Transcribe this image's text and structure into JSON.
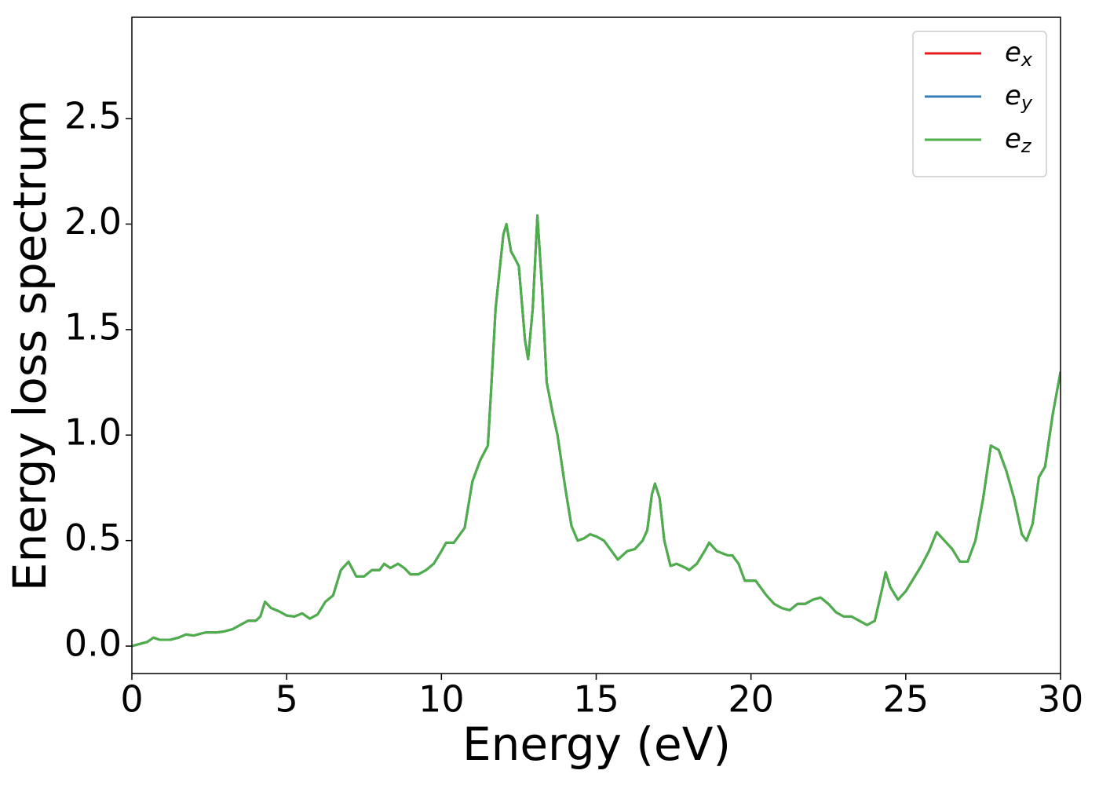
{
  "chart_data": {
    "type": "line",
    "xlabel": "Energy (eV)",
    "ylabel": "Energy loss spectrum",
    "x": [
      0,
      0.25,
      0.5,
      0.7,
      0.9,
      1.25,
      1.5,
      1.75,
      2.0,
      2.25,
      2.4,
      2.75,
      3.0,
      3.25,
      3.5,
      3.75,
      4.0,
      4.15,
      4.3,
      4.5,
      4.75,
      5.0,
      5.25,
      5.5,
      5.75,
      6.0,
      6.25,
      6.5,
      6.75,
      7.0,
      7.25,
      7.5,
      7.75,
      8.0,
      8.15,
      8.35,
      8.6,
      8.8,
      9.0,
      9.25,
      9.5,
      9.75,
      10.0,
      10.15,
      10.4,
      10.75,
      11.0,
      11.25,
      11.5,
      11.6,
      11.75,
      12.0,
      12.1,
      12.25,
      12.4,
      12.5,
      12.7,
      12.8,
      12.95,
      13.1,
      13.25,
      13.4,
      13.6,
      13.75,
      14.0,
      14.2,
      14.4,
      14.6,
      14.8,
      15.0,
      15.25,
      15.5,
      15.7,
      16.0,
      16.25,
      16.5,
      16.65,
      16.8,
      16.9,
      17.05,
      17.2,
      17.4,
      17.6,
      17.9,
      18.0,
      18.25,
      18.5,
      18.65,
      18.9,
      19.25,
      19.4,
      19.6,
      19.8,
      20.0,
      20.15,
      20.5,
      20.75,
      21.0,
      21.25,
      21.5,
      21.75,
      22.0,
      22.25,
      22.5,
      22.75,
      23.0,
      23.25,
      23.5,
      23.75,
      24.0,
      24.25,
      24.35,
      24.5,
      24.75,
      25.0,
      25.25,
      25.5,
      25.75,
      26.0,
      26.25,
      26.5,
      26.75,
      27.0,
      27.25,
      27.5,
      27.75,
      28.0,
      28.25,
      28.5,
      28.75,
      28.9,
      29.1,
      29.3,
      29.5,
      29.75,
      30.0
    ],
    "series": [
      {
        "name": "ex",
        "color": "#e41a1c",
        "values": [
          0,
          0.01,
          0.02,
          0.04,
          0.03,
          0.03,
          0.04,
          0.055,
          0.05,
          0.06,
          0.065,
          0.065,
          0.07,
          0.08,
          0.1,
          0.12,
          0.12,
          0.14,
          0.21,
          0.18,
          0.165,
          0.145,
          0.14,
          0.155,
          0.13,
          0.15,
          0.21,
          0.24,
          0.36,
          0.4,
          0.33,
          0.33,
          0.36,
          0.36,
          0.39,
          0.37,
          0.39,
          0.37,
          0.34,
          0.34,
          0.36,
          0.39,
          0.45,
          0.49,
          0.49,
          0.56,
          0.78,
          0.88,
          0.95,
          1.2,
          1.6,
          1.95,
          2.0,
          1.87,
          1.83,
          1.8,
          1.45,
          1.36,
          1.6,
          2.04,
          1.7,
          1.25,
          1.1,
          1.0,
          0.75,
          0.57,
          0.5,
          0.51,
          0.53,
          0.52,
          0.5,
          0.45,
          0.41,
          0.45,
          0.46,
          0.5,
          0.55,
          0.72,
          0.77,
          0.7,
          0.5,
          0.38,
          0.39,
          0.37,
          0.36,
          0.39,
          0.45,
          0.49,
          0.45,
          0.43,
          0.43,
          0.39,
          0.31,
          0.31,
          0.31,
          0.24,
          0.2,
          0.18,
          0.17,
          0.2,
          0.2,
          0.22,
          0.23,
          0.2,
          0.16,
          0.14,
          0.14,
          0.12,
          0.1,
          0.12,
          0.28,
          0.35,
          0.28,
          0.22,
          0.26,
          0.32,
          0.38,
          0.45,
          0.54,
          0.5,
          0.46,
          0.4,
          0.4,
          0.5,
          0.7,
          0.95,
          0.93,
          0.83,
          0.7,
          0.53,
          0.5,
          0.58,
          0.8,
          0.85,
          1.1,
          1.3
        ]
      },
      {
        "name": "ey",
        "color": "#377eb8",
        "values": [
          0,
          0.01,
          0.02,
          0.04,
          0.03,
          0.03,
          0.04,
          0.055,
          0.05,
          0.06,
          0.065,
          0.065,
          0.07,
          0.08,
          0.1,
          0.12,
          0.12,
          0.14,
          0.21,
          0.18,
          0.165,
          0.145,
          0.14,
          0.155,
          0.13,
          0.15,
          0.21,
          0.24,
          0.36,
          0.4,
          0.33,
          0.33,
          0.36,
          0.36,
          0.39,
          0.37,
          0.39,
          0.37,
          0.34,
          0.34,
          0.36,
          0.39,
          0.45,
          0.49,
          0.49,
          0.56,
          0.78,
          0.88,
          0.95,
          1.2,
          1.6,
          1.95,
          2.0,
          1.87,
          1.83,
          1.8,
          1.45,
          1.36,
          1.6,
          2.04,
          1.7,
          1.25,
          1.1,
          1.0,
          0.75,
          0.57,
          0.5,
          0.51,
          0.53,
          0.52,
          0.5,
          0.45,
          0.41,
          0.45,
          0.46,
          0.5,
          0.55,
          0.72,
          0.77,
          0.7,
          0.5,
          0.38,
          0.39,
          0.37,
          0.36,
          0.39,
          0.45,
          0.49,
          0.45,
          0.43,
          0.43,
          0.39,
          0.31,
          0.31,
          0.31,
          0.24,
          0.2,
          0.18,
          0.17,
          0.2,
          0.2,
          0.22,
          0.23,
          0.2,
          0.16,
          0.14,
          0.14,
          0.12,
          0.1,
          0.12,
          0.28,
          0.35,
          0.28,
          0.22,
          0.26,
          0.32,
          0.38,
          0.45,
          0.54,
          0.5,
          0.46,
          0.4,
          0.4,
          0.5,
          0.7,
          0.95,
          0.93,
          0.83,
          0.7,
          0.53,
          0.5,
          0.58,
          0.8,
          0.85,
          1.1,
          1.3
        ]
      },
      {
        "name": "ez",
        "color": "#4daf4a",
        "values": [
          0,
          0.01,
          0.02,
          0.04,
          0.03,
          0.03,
          0.04,
          0.055,
          0.05,
          0.06,
          0.065,
          0.065,
          0.07,
          0.08,
          0.1,
          0.12,
          0.12,
          0.14,
          0.21,
          0.18,
          0.165,
          0.145,
          0.14,
          0.155,
          0.13,
          0.15,
          0.21,
          0.24,
          0.36,
          0.4,
          0.33,
          0.33,
          0.36,
          0.36,
          0.39,
          0.37,
          0.39,
          0.37,
          0.34,
          0.34,
          0.36,
          0.39,
          0.45,
          0.49,
          0.49,
          0.56,
          0.78,
          0.88,
          0.95,
          1.2,
          1.6,
          1.95,
          2.0,
          1.87,
          1.83,
          1.8,
          1.45,
          1.36,
          1.6,
          2.04,
          1.7,
          1.25,
          1.1,
          1.0,
          0.75,
          0.57,
          0.5,
          0.51,
          0.53,
          0.52,
          0.5,
          0.45,
          0.41,
          0.45,
          0.46,
          0.5,
          0.55,
          0.72,
          0.77,
          0.7,
          0.5,
          0.38,
          0.39,
          0.37,
          0.36,
          0.39,
          0.45,
          0.49,
          0.45,
          0.43,
          0.43,
          0.39,
          0.31,
          0.31,
          0.31,
          0.24,
          0.2,
          0.18,
          0.17,
          0.2,
          0.2,
          0.22,
          0.23,
          0.2,
          0.16,
          0.14,
          0.14,
          0.12,
          0.1,
          0.12,
          0.28,
          0.35,
          0.28,
          0.22,
          0.26,
          0.32,
          0.38,
          0.45,
          0.54,
          0.5,
          0.46,
          0.4,
          0.4,
          0.5,
          0.7,
          0.95,
          0.93,
          0.83,
          0.7,
          0.53,
          0.5,
          0.58,
          0.8,
          0.85,
          1.1,
          1.3
        ]
      }
    ],
    "xlim": [
      0,
      30
    ],
    "xticks": [
      0,
      5,
      10,
      15,
      20,
      25,
      30
    ],
    "ylim": [
      -0.13,
      2.98
    ],
    "yticks": [
      {
        "value": 0,
        "label": "0.0"
      },
      0.5,
      {
        "value": 1,
        "label": "1.0"
      },
      1.5,
      {
        "value": 2,
        "label": "2.0"
      },
      2.5
    ],
    "grid": false,
    "legend": "upper right"
  }
}
